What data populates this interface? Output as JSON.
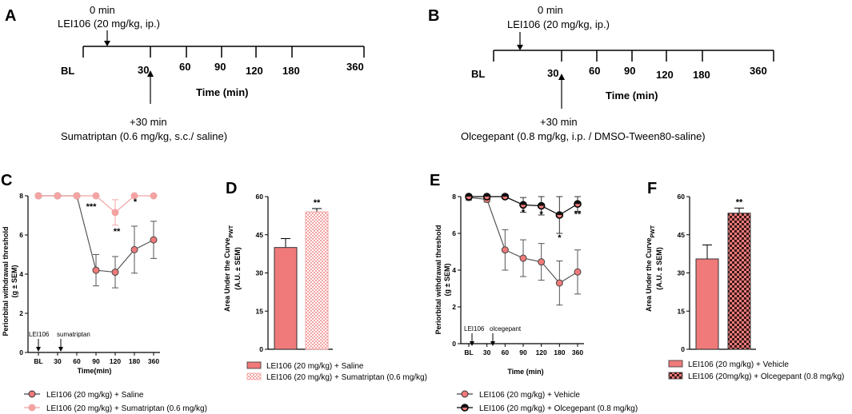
{
  "colors": {
    "salmon": "#f07a7a",
    "light_pink": "#f4a3a3",
    "dark": "#333333",
    "black": "#000000"
  },
  "panels": {
    "A": {
      "letter": "A",
      "injection1": {
        "time": "0 min",
        "drug": "LEI106 (20 mg/kg, ip.)"
      },
      "baseline_label": "BL",
      "timepoints": [
        "30",
        "60",
        "90",
        "120",
        "180",
        "360"
      ],
      "axis_title": "Time (min)",
      "injection2": {
        "time": "+30 min",
        "drug": "Sumatriptan (0.6 mg/kg, s.c./ saline)"
      }
    },
    "B": {
      "letter": "B",
      "injection1": {
        "time": "0 min",
        "drug": "LEI106 (20 mg/kg, ip.)"
      },
      "baseline_label": "BL",
      "timepoints": [
        "30",
        "60",
        "90",
        "120",
        "180",
        "360"
      ],
      "axis_title": "Time (min)",
      "injection2": {
        "time": "+30 min",
        "drug": "Olcegepant (0.8 mg/kg, i.p. / DMSO-Tween80-saline)"
      }
    }
  },
  "chart_data": [
    {
      "panel": "C",
      "type": "line",
      "ylabel_line1": "Periorbital withdrawal threshold",
      "ylabel_line2": "(g ± SEM)",
      "xlabel": "Time(min)",
      "categories": [
        "BL",
        "30",
        "60",
        "90",
        "120",
        "180",
        "360"
      ],
      "yticks": [
        "0",
        "2",
        "4",
        "6",
        "8"
      ],
      "ylim": [
        0,
        8
      ],
      "markers": {
        "first": "LEI106",
        "second": "sumatriptan"
      },
      "series": [
        {
          "name": "LEI106 (20 mg/kg) + Saline",
          "values": [
            8,
            8,
            8,
            4.2,
            4.1,
            5.25,
            5.75
          ],
          "err": [
            0,
            0,
            0,
            0.8,
            0.8,
            1.2,
            0.95
          ]
        },
        {
          "name": "LEI106 (20 mg/kg) + Sumatriptan (0.6 mg/kg)",
          "values": [
            8,
            8,
            8,
            8,
            7.15,
            8,
            8
          ],
          "err": [
            0,
            0,
            0,
            0,
            0.65,
            0,
            0
          ]
        }
      ],
      "annotations": [
        {
          "category": "90",
          "text": "***"
        },
        {
          "category": "120",
          "text": "**"
        },
        {
          "category": "180",
          "text": "*"
        }
      ]
    },
    {
      "panel": "D",
      "type": "bar",
      "ylabel_line1": "Area Under the Curve",
      "ylabel_sub": "PWT",
      "ylabel_line2": "(A.U. ± SEM)",
      "yticks": [
        "0",
        "15",
        "30",
        "45",
        "60"
      ],
      "ylim": [
        0,
        60
      ],
      "series": [
        {
          "name": "LEI106 (20 mg/kg) + Saline",
          "value": 40,
          "err": 3.5
        },
        {
          "name": "LEI106 (20 mg/kg) + Sumatriptan (0.6 mg/kg)",
          "value": 54,
          "err": 1.3
        }
      ],
      "annotations": [
        {
          "bar": 1,
          "text": "**"
        }
      ]
    },
    {
      "panel": "E",
      "type": "line",
      "ylabel_line1": "Periorbital withdrawal threshold",
      "ylabel_line2": "(g ± SEM)",
      "xlabel": "Time (min)",
      "categories": [
        "BL",
        "30",
        "60",
        "90",
        "120",
        "180",
        "360"
      ],
      "yticks": [
        "0",
        "2",
        "4",
        "6",
        "8"
      ],
      "ylim": [
        0,
        8
      ],
      "markers": {
        "first": "LEI106",
        "second": "olcegepant"
      },
      "series": [
        {
          "name": "LEI106 (20 mg/kg) + Vehicle",
          "values": [
            7.95,
            7.85,
            5.1,
            4.65,
            4.45,
            3.3,
            3.9
          ],
          "err": [
            0.15,
            0.15,
            1.1,
            1.0,
            1.0,
            1.2,
            1.2
          ]
        },
        {
          "name": "LEI106 (20 mg/kg) + Olcegepant (0.8 mg/kg)",
          "values": [
            8,
            8,
            8,
            7.55,
            7.5,
            7.0,
            7.6
          ],
          "err": [
            0,
            0,
            0,
            0.4,
            0.5,
            1.0,
            0.4
          ]
        }
      ],
      "annotations": [
        {
          "category": "90",
          "text": "*"
        },
        {
          "category": "120",
          "text": "*"
        },
        {
          "category": "180",
          "text": "*"
        },
        {
          "category": "360",
          "text": "**"
        }
      ]
    },
    {
      "panel": "F",
      "type": "bar",
      "ylabel_line1": "Area Under the Curve",
      "ylabel_sub": "PWT",
      "ylabel_line2": "(A.U. ± SEM)",
      "yticks": [
        "0",
        "15",
        "30",
        "45",
        "60"
      ],
      "ylim": [
        0,
        60
      ],
      "series": [
        {
          "name": "LEI106 (20 mg/kg) + Vehicle",
          "value": 35.5,
          "err": 5.5
        },
        {
          "name": "LEI106 (20mg/kg) + Olcegepant (0.8 mg/kg)",
          "value": 53.5,
          "err": 2.0
        }
      ],
      "annotations": [
        {
          "bar": 1,
          "text": "**"
        }
      ]
    }
  ]
}
